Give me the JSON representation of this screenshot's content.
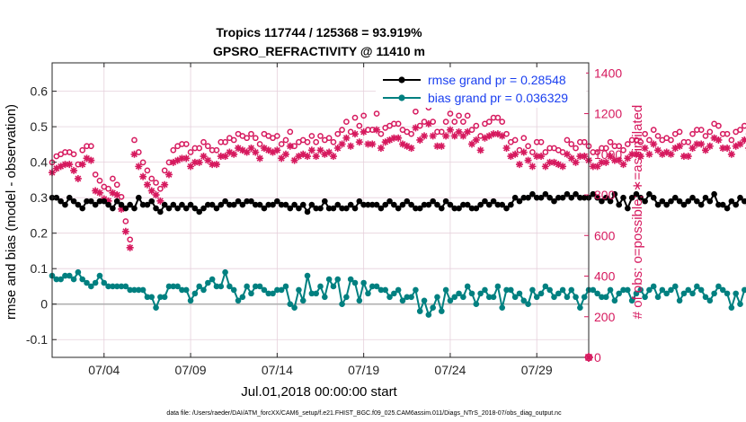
{
  "chart_data": {
    "type": "line",
    "title_line1": "Tropics 117744 / 125368 = 93.919%",
    "title_line2": "GPSRO_REFRACTIVITY @ 11410 m",
    "xlabel": "Jul.01,2018 00:00:00 start",
    "ylabel_left": "rmse and bias (model - observation)",
    "ylabel_right": "# of obs: o=possible; ∗=assimilated",
    "footer": "data file: /Users/raeder/DAI/ATM_forcXX/CAM6_setup/f.e21.FHIST_BGC.f09_025.CAM6assim.011/Diags_NTrS_2018-07/obs_diag_output.nc",
    "x_ticks": [
      "07/04",
      "07/09",
      "07/14",
      "07/19",
      "07/24",
      "07/29"
    ],
    "x_tick_values": [
      4,
      9,
      14,
      19,
      24,
      29
    ],
    "xlim": [
      1,
      32
    ],
    "y_left_ticks": [
      "-0.1",
      "0",
      "0.1",
      "0.2",
      "0.3",
      "0.4",
      "0.5",
      "0.6"
    ],
    "y_left_tick_values": [
      -0.1,
      0,
      0.1,
      0.2,
      0.3,
      0.4,
      0.5,
      0.6
    ],
    "ylim_left": [
      -0.15,
      0.68
    ],
    "y_right_ticks": [
      "0",
      "200",
      "400",
      "600",
      "800",
      "1000",
      "1200",
      "1400"
    ],
    "y_right_tick_values": [
      0,
      200,
      400,
      600,
      800,
      1000,
      1200,
      1400
    ],
    "ylim_right": [
      0,
      1450
    ],
    "legend": [
      {
        "name": "rmse grand pr = 0.28548",
        "color": "#000000"
      },
      {
        "name": "bias grand pr = 0.036329",
        "color": "#008080"
      }
    ],
    "colors": {
      "rmse": "#000000",
      "bias": "#008080",
      "obs": "#d6195e",
      "zero_line": "#b0b0b0",
      "right_axis": "#d6195e"
    },
    "series": [
      {
        "name": "rmse",
        "axis": "left",
        "x_start": 1.0,
        "x_step": 0.25,
        "values": [
          0.3,
          0.3,
          0.29,
          0.28,
          0.3,
          0.29,
          0.28,
          0.27,
          0.29,
          0.29,
          0.28,
          0.29,
          0.29,
          0.28,
          0.27,
          0.29,
          0.28,
          0.27,
          0.28,
          0.27,
          0.3,
          0.28,
          0.28,
          0.29,
          0.27,
          0.26,
          0.28,
          0.27,
          0.28,
          0.27,
          0.28,
          0.27,
          0.28,
          0.27,
          0.26,
          0.27,
          0.28,
          0.28,
          0.27,
          0.28,
          0.29,
          0.28,
          0.28,
          0.29,
          0.28,
          0.29,
          0.29,
          0.28,
          0.28,
          0.27,
          0.28,
          0.28,
          0.29,
          0.28,
          0.28,
          0.27,
          0.28,
          0.27,
          0.28,
          0.26,
          0.28,
          0.27,
          0.27,
          0.29,
          0.27,
          0.27,
          0.28,
          0.27,
          0.27,
          0.28,
          0.27,
          0.29,
          0.28,
          0.28,
          0.28,
          0.28,
          0.27,
          0.28,
          0.29,
          0.28,
          0.27,
          0.28,
          0.29,
          0.28,
          0.27,
          0.27,
          0.28,
          0.28,
          0.29,
          0.28,
          0.27,
          0.29,
          0.28,
          0.27,
          0.27,
          0.28,
          0.28,
          0.27,
          0.27,
          0.28,
          0.29,
          0.28,
          0.29,
          0.28,
          0.28,
          0.27,
          0.28,
          0.3,
          0.29,
          0.3,
          0.3,
          0.31,
          0.3,
          0.3,
          0.31,
          0.3,
          0.29,
          0.3,
          0.3,
          0.31,
          0.3,
          0.31,
          0.3,
          0.3,
          0.3,
          0.31,
          0.3,
          0.29,
          0.3,
          0.29,
          0.31,
          0.28,
          0.3,
          0.27,
          0.3,
          0.31,
          0.3,
          0.29,
          0.31,
          0.3,
          0.28,
          0.29,
          0.28,
          0.29,
          0.3,
          0.29,
          0.28,
          0.29,
          0.3,
          0.29,
          0.28,
          0.3,
          0.29,
          0.31,
          0.28,
          0.28,
          0.27,
          0.29,
          0.28,
          0.3,
          0.29,
          0.28,
          0.29,
          0.29,
          0.28,
          0.29,
          0.28,
          0.27,
          0.28,
          0.29,
          0.28,
          0.29,
          0.29,
          0.28,
          0.29,
          0.29,
          0.29,
          0.3,
          0.29,
          0.3,
          0.3,
          0.29,
          0.29,
          0.3,
          0.3,
          0.3,
          0.31,
          0.3,
          0.29,
          0.29,
          0.3,
          0.29,
          0.29,
          0.31,
          0.3,
          0.31,
          0.31,
          0.3,
          0.32,
          0.31,
          0.3,
          0.32
        ]
      },
      {
        "name": "bias",
        "axis": "left",
        "x_start": 1.0,
        "x_step": 0.25,
        "values": [
          0.08,
          0.07,
          0.07,
          0.08,
          0.08,
          0.07,
          0.09,
          0.07,
          0.06,
          0.05,
          0.06,
          0.08,
          0.06,
          0.05,
          0.05,
          0.05,
          0.05,
          0.05,
          0.04,
          0.04,
          0.04,
          0.04,
          0.02,
          0.02,
          -0.01,
          0.02,
          0.02,
          0.05,
          0.05,
          0.05,
          0.04,
          0.04,
          0.01,
          0.03,
          0.05,
          0.04,
          0.06,
          0.07,
          0.05,
          0.05,
          0.09,
          0.05,
          0.04,
          0.01,
          0.02,
          0.05,
          0.03,
          0.05,
          0.05,
          0.04,
          0.03,
          0.03,
          0.04,
          0.04,
          0.05,
          0.0,
          -0.01,
          0.04,
          0.01,
          0.08,
          0.03,
          0.03,
          0.05,
          0.02,
          0.07,
          0.05,
          0.07,
          0.0,
          0.02,
          0.07,
          0.06,
          0.01,
          0.06,
          0.03,
          0.05,
          0.05,
          0.04,
          0.04,
          0.02,
          0.03,
          0.04,
          0.01,
          0.02,
          0.02,
          0.04,
          -0.02,
          0.01,
          -0.03,
          -0.01,
          0.02,
          -0.02,
          0.04,
          0.01,
          0.02,
          0.03,
          0.02,
          0.05,
          0.03,
          0.0,
          0.03,
          0.04,
          0.02,
          0.02,
          0.05,
          -0.01,
          0.04,
          0.04,
          0.02,
          0.03,
          0.01,
          0.0,
          0.04,
          0.02,
          0.03,
          0.05,
          0.04,
          0.02,
          0.03,
          0.04,
          0.02,
          0.04,
          0.02,
          -0.01,
          0.02,
          0.04,
          0.04,
          0.03,
          0.02,
          0.02,
          0.04,
          0.01,
          0.03,
          0.04,
          0.04,
          0.01,
          0.03,
          0.04,
          0.02,
          0.04,
          0.05,
          0.02,
          0.04,
          0.03,
          0.04,
          0.05,
          0.01,
          0.03,
          0.04,
          0.03,
          0.05,
          0.04,
          0.02,
          0.01,
          0.03,
          0.05,
          0.04,
          0.03,
          -0.01,
          0.03,
          0.0,
          0.04,
          0.05,
          0.03,
          0.02,
          0.05,
          0.04,
          0.06,
          0.04,
          0.02,
          0.05,
          0.03,
          0.02,
          0.04,
          0.04,
          0.07,
          0.05,
          0.04,
          0.03,
          0.08,
          0.03,
          0.04,
          0.06,
          0.1,
          0.03,
          0.02,
          0.04,
          0.03,
          0.06,
          0.04,
          0.05,
          0.07,
          0.04,
          0.05,
          0.06,
          0.07,
          0.06,
          0.07,
          0.08,
          0.07,
          0.08,
          0.08,
          0.12,
          0.1,
          0.08,
          0.09,
          0.09,
          0.09,
          0.1
        ]
      },
      {
        "name": "obs_possible",
        "axis": "right",
        "marker": "o",
        "x_start": 1.0,
        "x_step": 0.25,
        "values": [
          960,
          990,
          1000,
          1010,
          1010,
          1000,
          950,
          1020,
          1040,
          1040,
          900,
          870,
          840,
          830,
          880,
          850,
          790,
          670,
          580,
          1070,
          1010,
          960,
          920,
          880,
          860,
          830,
          920,
          960,
          1020,
          1040,
          1050,
          1050,
          1010,
          1030,
          1030,
          1060,
          1040,
          1020,
          1020,
          1060,
          1060,
          1080,
          1070,
          1100,
          1090,
          1080,
          1100,
          1080,
          1050,
          1100,
          1090,
          1080,
          1090,
          1050,
          1070,
          1110,
          1040,
          1060,
          1070,
          1060,
          1090,
          1060,
          1090,
          1070,
          1080,
          1060,
          1100,
          1120,
          1160,
          1110,
          1180,
          1140,
          1190,
          1120,
          1120,
          1200,
          1100,
          1130,
          1140,
          1150,
          1150,
          1120,
          1110,
          1100,
          1210,
          1140,
          1160,
          1230,
          1160,
          1110,
          1110,
          1160,
          1200,
          1160,
          1190,
          1160,
          1190,
          1120,
          1140,
          1090,
          1150,
          1160,
          1180,
          1180,
          1160,
          1100,
          1060,
          1070,
          1020,
          1080,
          1040,
          1010,
          1060,
          1060,
          1010,
          1030,
          1030,
          1020,
          1010,
          1070,
          1050,
          1030,
          1060,
          1060,
          1040,
          1010,
          1010,
          1030,
          1030,
          1060,
          1040,
          1040,
          1020,
          1050,
          1070,
          1070,
          1060,
          1100,
          1070,
          1120,
          1090,
          1070,
          1080,
          1070,
          1100,
          1110,
          1060,
          1060,
          1100,
          1120,
          1120,
          1090,
          1110,
          1150,
          1140,
          1100,
          1100,
          1070,
          1110,
          1120,
          1140,
          1100,
          1140,
          1180,
          1140,
          1120,
          1130,
          1130,
          1170,
          1170,
          1150,
          1160,
          1150,
          1130,
          1130,
          1160,
          1160,
          1120,
          1180,
          1130,
          1150,
          1160,
          1160,
          1140,
          1150,
          1170,
          1170,
          1130,
          1140,
          1110,
          1140,
          1130,
          1130,
          1120,
          1160,
          1170,
          1180,
          1150,
          1150,
          1170,
          1170,
          1150,
          1180,
          1140,
          1170,
          1180
        ]
      },
      {
        "name": "obs_assimilated",
        "axis": "right",
        "marker": "*",
        "x_start": 1.0,
        "x_step": 0.25,
        "values": [
          910,
          930,
          940,
          950,
          950,
          920,
          880,
          950,
          980,
          970,
          820,
          810,
          780,
          770,
          810,
          800,
          730,
          620,
          540,
          1000,
          940,
          890,
          850,
          820,
          800,
          770,
          850,
          900,
          960,
          970,
          980,
          980,
          940,
          960,
          960,
          990,
          970,
          950,
          950,
          990,
          990,
          1010,
          1000,
          1030,
          1020,
          1010,
          1030,
          1010,
          980,
          1030,
          1020,
          1010,
          1020,
          980,
          1000,
          1040,
          970,
          990,
          1000,
          990,
          1020,
          990,
          1020,
          1000,
          1010,
          990,
          1030,
          1050,
          1080,
          1040,
          1100,
          1060,
          1110,
          1050,
          1050,
          1120,
          1030,
          1060,
          1070,
          1080,
          1080,
          1050,
          1040,
          1030,
          1130,
          1070,
          1090,
          1150,
          1090,
          1040,
          1040,
          1090,
          1120,
          1090,
          1110,
          1090,
          1110,
          1050,
          1070,
          1020,
          1080,
          1090,
          1100,
          1100,
          1090,
          1030,
          990,
          1000,
          950,
          1010,
          970,
          940,
          990,
          990,
          940,
          960,
          960,
          950,
          940,
          1000,
          980,
          960,
          990,
          990,
          970,
          940,
          940,
          960,
          960,
          990,
          970,
          970,
          950,
          980,
          1000,
          1000,
          990,
          1030,
          1000,
          1050,
          1020,
          1000,
          1010,
          1000,
          1030,
          1040,
          990,
          990,
          1030,
          1050,
          1050,
          1020,
          1040,
          1080,
          1070,
          1030,
          1030,
          1000,
          1040,
          1050,
          1070,
          1030,
          1070,
          1100,
          1070,
          1050,
          1060,
          1060,
          1090,
          1090,
          1080,
          1090,
          1080,
          1060,
          1060,
          1090,
          1090,
          1050,
          1100,
          1060,
          1080,
          1090,
          1090,
          1070,
          1080,
          1090,
          1090,
          1060,
          1070,
          1040,
          1070,
          1060,
          1060,
          1050,
          1090,
          1100,
          1100,
          1080,
          1080,
          1090,
          1090,
          1080,
          1100,
          1070,
          1100,
          1100
        ]
      }
    ],
    "extra_points": [
      {
        "name": "obs_zero_marker",
        "axis": "right",
        "x": 32,
        "y": 0
      }
    ]
  }
}
